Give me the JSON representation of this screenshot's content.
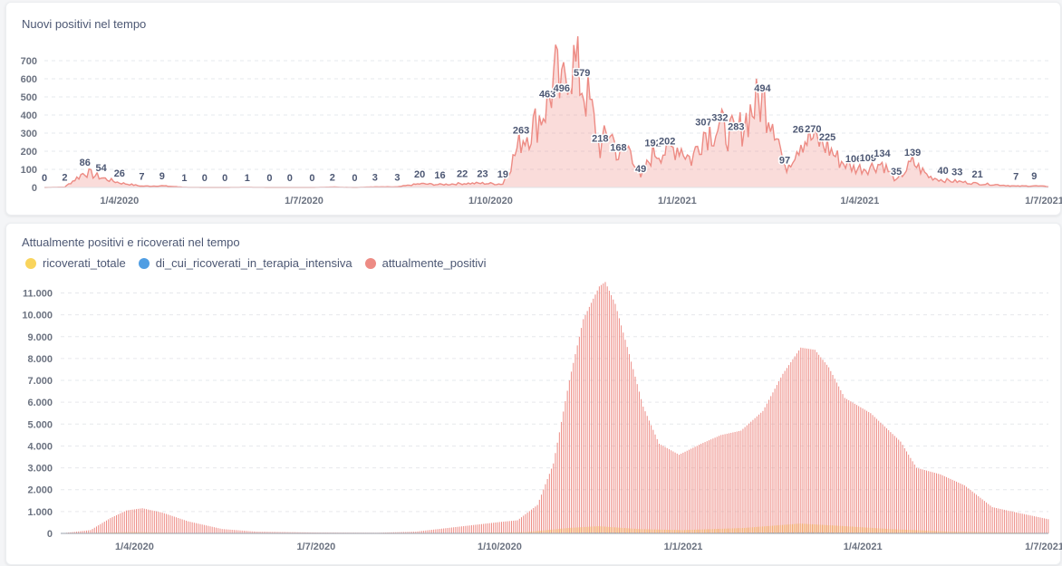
{
  "chart_data": [
    {
      "type": "area",
      "title": "Nuovi positivi nel tempo",
      "xlabel": "",
      "ylabel": "",
      "ylim": [
        0,
        780
      ],
      "y_ticks": [
        0,
        100,
        200,
        300,
        400,
        500,
        600,
        700
      ],
      "x_range": [
        "2020-02-24",
        "2021-07-03"
      ],
      "x_ticks": [
        {
          "date": "2020-04-01",
          "label": "1/4/2020"
        },
        {
          "date": "2020-07-01",
          "label": "1/7/2020"
        },
        {
          "date": "2020-10-01",
          "label": "1/10/2020"
        },
        {
          "date": "2021-01-01",
          "label": "1/1/2021"
        },
        {
          "date": "2021-04-01",
          "label": "1/4/2021"
        },
        {
          "date": "2021-07-01",
          "label": "1/7/2021"
        }
      ],
      "color": "#ed8b84",
      "series": [
        {
          "points": [
            [
              "2020-02-24",
              0
            ],
            [
              "2020-03-05",
              2
            ],
            [
              "2020-03-15",
              86
            ],
            [
              "2020-03-23",
              54
            ],
            [
              "2020-04-01",
              26
            ],
            [
              "2020-04-12",
              7
            ],
            [
              "2020-04-22",
              9
            ],
            [
              "2020-05-03",
              1
            ],
            [
              "2020-05-13",
              0
            ],
            [
              "2020-05-23",
              0
            ],
            [
              "2020-06-03",
              1
            ],
            [
              "2020-06-14",
              0
            ],
            [
              "2020-06-24",
              0
            ],
            [
              "2020-07-05",
              0
            ],
            [
              "2020-07-15",
              2
            ],
            [
              "2020-07-26",
              0
            ],
            [
              "2020-08-05",
              3
            ],
            [
              "2020-08-16",
              3
            ],
            [
              "2020-08-27",
              20
            ],
            [
              "2020-09-06",
              16
            ],
            [
              "2020-09-17",
              22
            ],
            [
              "2020-09-27",
              23
            ],
            [
              "2020-10-07",
              19
            ],
            [
              "2020-10-16",
              263
            ],
            [
              "2020-10-23",
              350
            ],
            [
              "2020-10-29",
              463
            ],
            [
              "2020-11-02",
              620
            ],
            [
              "2020-11-05",
              496
            ],
            [
              "2020-11-08",
              720
            ],
            [
              "2020-11-11",
              680
            ],
            [
              "2020-11-15",
              579
            ],
            [
              "2020-11-19",
              450
            ],
            [
              "2020-11-24",
              218
            ],
            [
              "2020-11-29",
              320
            ],
            [
              "2020-12-03",
              168
            ],
            [
              "2020-12-09",
              220
            ],
            [
              "2020-12-14",
              49
            ],
            [
              "2020-12-20",
              192
            ],
            [
              "2020-12-27",
              202
            ],
            [
              "2021-01-02",
              230
            ],
            [
              "2021-01-08",
              150
            ],
            [
              "2021-01-14",
              307
            ],
            [
              "2021-01-22",
              332
            ],
            [
              "2021-01-30",
              283
            ],
            [
              "2021-02-06",
              420
            ],
            [
              "2021-02-12",
              494
            ],
            [
              "2021-02-18",
              380
            ],
            [
              "2021-02-23",
              97
            ],
            [
              "2021-03-03",
              267
            ],
            [
              "2021-03-09",
              270
            ],
            [
              "2021-03-16",
              225
            ],
            [
              "2021-03-22",
              150
            ],
            [
              "2021-03-29",
              106
            ],
            [
              "2021-04-05",
              109
            ],
            [
              "2021-04-12",
              134
            ],
            [
              "2021-04-19",
              35
            ],
            [
              "2021-04-27",
              139
            ],
            [
              "2021-05-05",
              60
            ],
            [
              "2021-05-12",
              40
            ],
            [
              "2021-05-19",
              33
            ],
            [
              "2021-05-29",
              21
            ],
            [
              "2021-06-08",
              15
            ],
            [
              "2021-06-17",
              7
            ],
            [
              "2021-06-26",
              9
            ],
            [
              "2021-07-03",
              5
            ]
          ]
        }
      ],
      "data_labels": [
        {
          "date": "2020-02-24",
          "value": 0,
          "text": "0"
        },
        {
          "date": "2020-03-05",
          "value": 2,
          "text": "2"
        },
        {
          "date": "2020-03-15",
          "value": 86,
          "text": "86"
        },
        {
          "date": "2020-03-23",
          "value": 54,
          "text": "54"
        },
        {
          "date": "2020-04-01",
          "value": 26,
          "text": "26"
        },
        {
          "date": "2020-04-12",
          "value": 7,
          "text": "7"
        },
        {
          "date": "2020-04-22",
          "value": 9,
          "text": "9"
        },
        {
          "date": "2020-05-03",
          "value": 1,
          "text": "1"
        },
        {
          "date": "2020-05-13",
          "value": 0,
          "text": "0"
        },
        {
          "date": "2020-05-23",
          "value": 0,
          "text": "0"
        },
        {
          "date": "2020-06-03",
          "value": 1,
          "text": "1"
        },
        {
          "date": "2020-06-14",
          "value": 0,
          "text": "0"
        },
        {
          "date": "2020-06-24",
          "value": 0,
          "text": "0"
        },
        {
          "date": "2020-07-05",
          "value": 0,
          "text": "0"
        },
        {
          "date": "2020-07-15",
          "value": 2,
          "text": "2"
        },
        {
          "date": "2020-07-26",
          "value": 0,
          "text": "0"
        },
        {
          "date": "2020-08-05",
          "value": 3,
          "text": "3"
        },
        {
          "date": "2020-08-16",
          "value": 3,
          "text": "3"
        },
        {
          "date": "2020-08-27",
          "value": 20,
          "text": "20"
        },
        {
          "date": "2020-09-06",
          "value": 16,
          "text": "16"
        },
        {
          "date": "2020-09-17",
          "value": 22,
          "text": "22"
        },
        {
          "date": "2020-09-27",
          "value": 23,
          "text": "23"
        },
        {
          "date": "2020-10-07",
          "value": 19,
          "text": "19"
        },
        {
          "date": "2020-10-16",
          "value": 263,
          "text": "263"
        },
        {
          "date": "2020-10-29",
          "value": 463,
          "text": "463"
        },
        {
          "date": "2020-11-05",
          "value": 496,
          "text": "496"
        },
        {
          "date": "2020-11-15",
          "value": 579,
          "text": "579"
        },
        {
          "date": "2020-11-24",
          "value": 218,
          "text": "218"
        },
        {
          "date": "2020-12-03",
          "value": 168,
          "text": "168"
        },
        {
          "date": "2020-12-14",
          "value": 49,
          "text": "49"
        },
        {
          "date": "2020-12-20",
          "value": 192,
          "text": "192"
        },
        {
          "date": "2020-12-27",
          "value": 202,
          "text": "202"
        },
        {
          "date": "2021-01-14",
          "value": 307,
          "text": "307"
        },
        {
          "date": "2021-01-22",
          "value": 332,
          "text": "332"
        },
        {
          "date": "2021-01-30",
          "value": 283,
          "text": "283"
        },
        {
          "date": "2021-02-12",
          "value": 494,
          "text": "494"
        },
        {
          "date": "2021-02-23",
          "value": 97,
          "text": "97"
        },
        {
          "date": "2021-03-03",
          "value": 267,
          "text": "267"
        },
        {
          "date": "2021-03-09",
          "value": 270,
          "text": "270"
        },
        {
          "date": "2021-03-16",
          "value": 225,
          "text": "225"
        },
        {
          "date": "2021-03-29",
          "value": 106,
          "text": "106"
        },
        {
          "date": "2021-04-05",
          "value": 109,
          "text": "109"
        },
        {
          "date": "2021-04-12",
          "value": 134,
          "text": "134"
        },
        {
          "date": "2021-04-19",
          "value": 35,
          "text": "35"
        },
        {
          "date": "2021-04-27",
          "value": 139,
          "text": "139"
        },
        {
          "date": "2021-05-12",
          "value": 40,
          "text": "40"
        },
        {
          "date": "2021-05-19",
          "value": 33,
          "text": "33"
        },
        {
          "date": "2021-05-29",
          "value": 21,
          "text": "21"
        },
        {
          "date": "2021-06-17",
          "value": 7,
          "text": "7"
        },
        {
          "date": "2021-06-26",
          "value": 9,
          "text": "9"
        }
      ],
      "grid": true
    },
    {
      "type": "bar",
      "title": "Attualmente positivi e ricoverati nel tempo",
      "xlabel": "",
      "ylabel": "",
      "ylim": [
        0,
        11600
      ],
      "y_ticks": [
        {
          "value": 0,
          "label": "0"
        },
        {
          "value": 1000,
          "label": "1.000"
        },
        {
          "value": 2000,
          "label": "2.000"
        },
        {
          "value": 3000,
          "label": "3.000"
        },
        {
          "value": 4000,
          "label": "4.000"
        },
        {
          "value": 5000,
          "label": "5.000"
        },
        {
          "value": 6000,
          "label": "6.000"
        },
        {
          "value": 7000,
          "label": "7.000"
        },
        {
          "value": 8000,
          "label": "8.000"
        },
        {
          "value": 9000,
          "label": "9.000"
        },
        {
          "value": 10000,
          "label": "10.000"
        },
        {
          "value": 11000,
          "label": "11.000"
        }
      ],
      "x_range": [
        "2020-02-24",
        "2021-07-03"
      ],
      "x_ticks": [
        {
          "date": "2020-04-01",
          "label": "1/4/2020"
        },
        {
          "date": "2020-07-01",
          "label": "1/7/2020"
        },
        {
          "date": "2020-10-01",
          "label": "1/10/2020"
        },
        {
          "date": "2021-01-01",
          "label": "1/1/2021"
        },
        {
          "date": "2021-04-01",
          "label": "1/4/2021"
        },
        {
          "date": "2021-07-01",
          "label": "1/7/2021"
        }
      ],
      "legend_position": "top-left",
      "series": [
        {
          "name": "ricoverati_totale",
          "color": "#f9d45c",
          "points": [
            [
              "2020-02-24",
              0
            ],
            [
              "2020-03-20",
              40
            ],
            [
              "2020-04-01",
              60
            ],
            [
              "2020-04-25",
              20
            ],
            [
              "2020-06-01",
              5
            ],
            [
              "2020-09-01",
              10
            ],
            [
              "2020-10-15",
              60
            ],
            [
              "2020-11-05",
              250
            ],
            [
              "2020-11-20",
              330
            ],
            [
              "2020-12-10",
              200
            ],
            [
              "2021-01-01",
              150
            ],
            [
              "2021-02-01",
              250
            ],
            [
              "2021-03-01",
              450
            ],
            [
              "2021-03-20",
              350
            ],
            [
              "2021-04-15",
              200
            ],
            [
              "2021-05-15",
              80
            ],
            [
              "2021-07-03",
              20
            ]
          ]
        },
        {
          "name": "di_cui_ricoverati_in_terapia_intensiva",
          "color": "#509ee3",
          "points": [
            [
              "2020-02-24",
              0
            ],
            [
              "2020-04-01",
              10
            ],
            [
              "2020-06-01",
              1
            ],
            [
              "2020-10-15",
              5
            ],
            [
              "2020-11-20",
              40
            ],
            [
              "2021-01-01",
              20
            ],
            [
              "2021-03-05",
              50
            ],
            [
              "2021-05-01",
              15
            ],
            [
              "2021-07-03",
              2
            ]
          ]
        },
        {
          "name": "attualmente_positivi",
          "color": "#ed8b84",
          "points": [
            [
              "2020-02-24",
              0
            ],
            [
              "2020-03-10",
              150
            ],
            [
              "2020-03-20",
              700
            ],
            [
              "2020-03-28",
              1050
            ],
            [
              "2020-04-05",
              1150
            ],
            [
              "2020-04-15",
              950
            ],
            [
              "2020-04-28",
              550
            ],
            [
              "2020-05-15",
              200
            ],
            [
              "2020-06-01",
              80
            ],
            [
              "2020-07-01",
              40
            ],
            [
              "2020-08-01",
              30
            ],
            [
              "2020-08-20",
              80
            ],
            [
              "2020-09-10",
              300
            ],
            [
              "2020-10-01",
              520
            ],
            [
              "2020-10-10",
              600
            ],
            [
              "2020-10-20",
              1300
            ],
            [
              "2020-10-28",
              3200
            ],
            [
              "2020-11-05",
              7000
            ],
            [
              "2020-11-12",
              9800
            ],
            [
              "2020-11-20",
              11300
            ],
            [
              "2020-11-23",
              11500
            ],
            [
              "2020-11-28",
              10500
            ],
            [
              "2020-12-05",
              8200
            ],
            [
              "2020-12-12",
              5800
            ],
            [
              "2020-12-20",
              4100
            ],
            [
              "2020-12-30",
              3600
            ],
            [
              "2021-01-10",
              4100
            ],
            [
              "2021-01-20",
              4500
            ],
            [
              "2021-01-30",
              4700
            ],
            [
              "2021-02-10",
              5600
            ],
            [
              "2021-02-20",
              7300
            ],
            [
              "2021-03-01",
              8500
            ],
            [
              "2021-03-08",
              8400
            ],
            [
              "2021-03-15",
              7600
            ],
            [
              "2021-03-23",
              6200
            ],
            [
              "2021-04-05",
              5500
            ],
            [
              "2021-04-20",
              4200
            ],
            [
              "2021-04-28",
              3000
            ],
            [
              "2021-05-10",
              2700
            ],
            [
              "2021-05-22",
              2200
            ],
            [
              "2021-06-05",
              1200
            ],
            [
              "2021-06-20",
              900
            ],
            [
              "2021-07-03",
              650
            ]
          ]
        }
      ],
      "grid": true
    }
  ]
}
